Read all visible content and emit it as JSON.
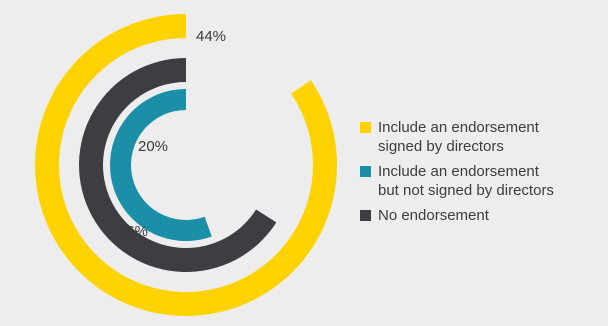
{
  "chart_data": {
    "type": "radial-bar",
    "title": "",
    "series": [
      {
        "name": "Include an endorsement\nsigned by directors",
        "value": 44,
        "label": "44%",
        "color": "#ffd200"
      },
      {
        "name": "No endorsement",
        "value": 36,
        "label": "36%",
        "color": "#3e3d42"
      },
      {
        "name": "Include an endorsement\nbut not signed by directors",
        "value": 20,
        "label": "20%",
        "color": "#1b8ea8"
      }
    ],
    "legend": {
      "placement": "right",
      "items": [
        {
          "label": "Include an endorsement\nsigned by directors",
          "color": "#ffd200"
        },
        {
          "label": "Include an endorsement\nbut not signed by directors",
          "color": "#1b8ea8"
        },
        {
          "label": "No endorsement",
          "color": "#3e3d42"
        }
      ]
    }
  }
}
